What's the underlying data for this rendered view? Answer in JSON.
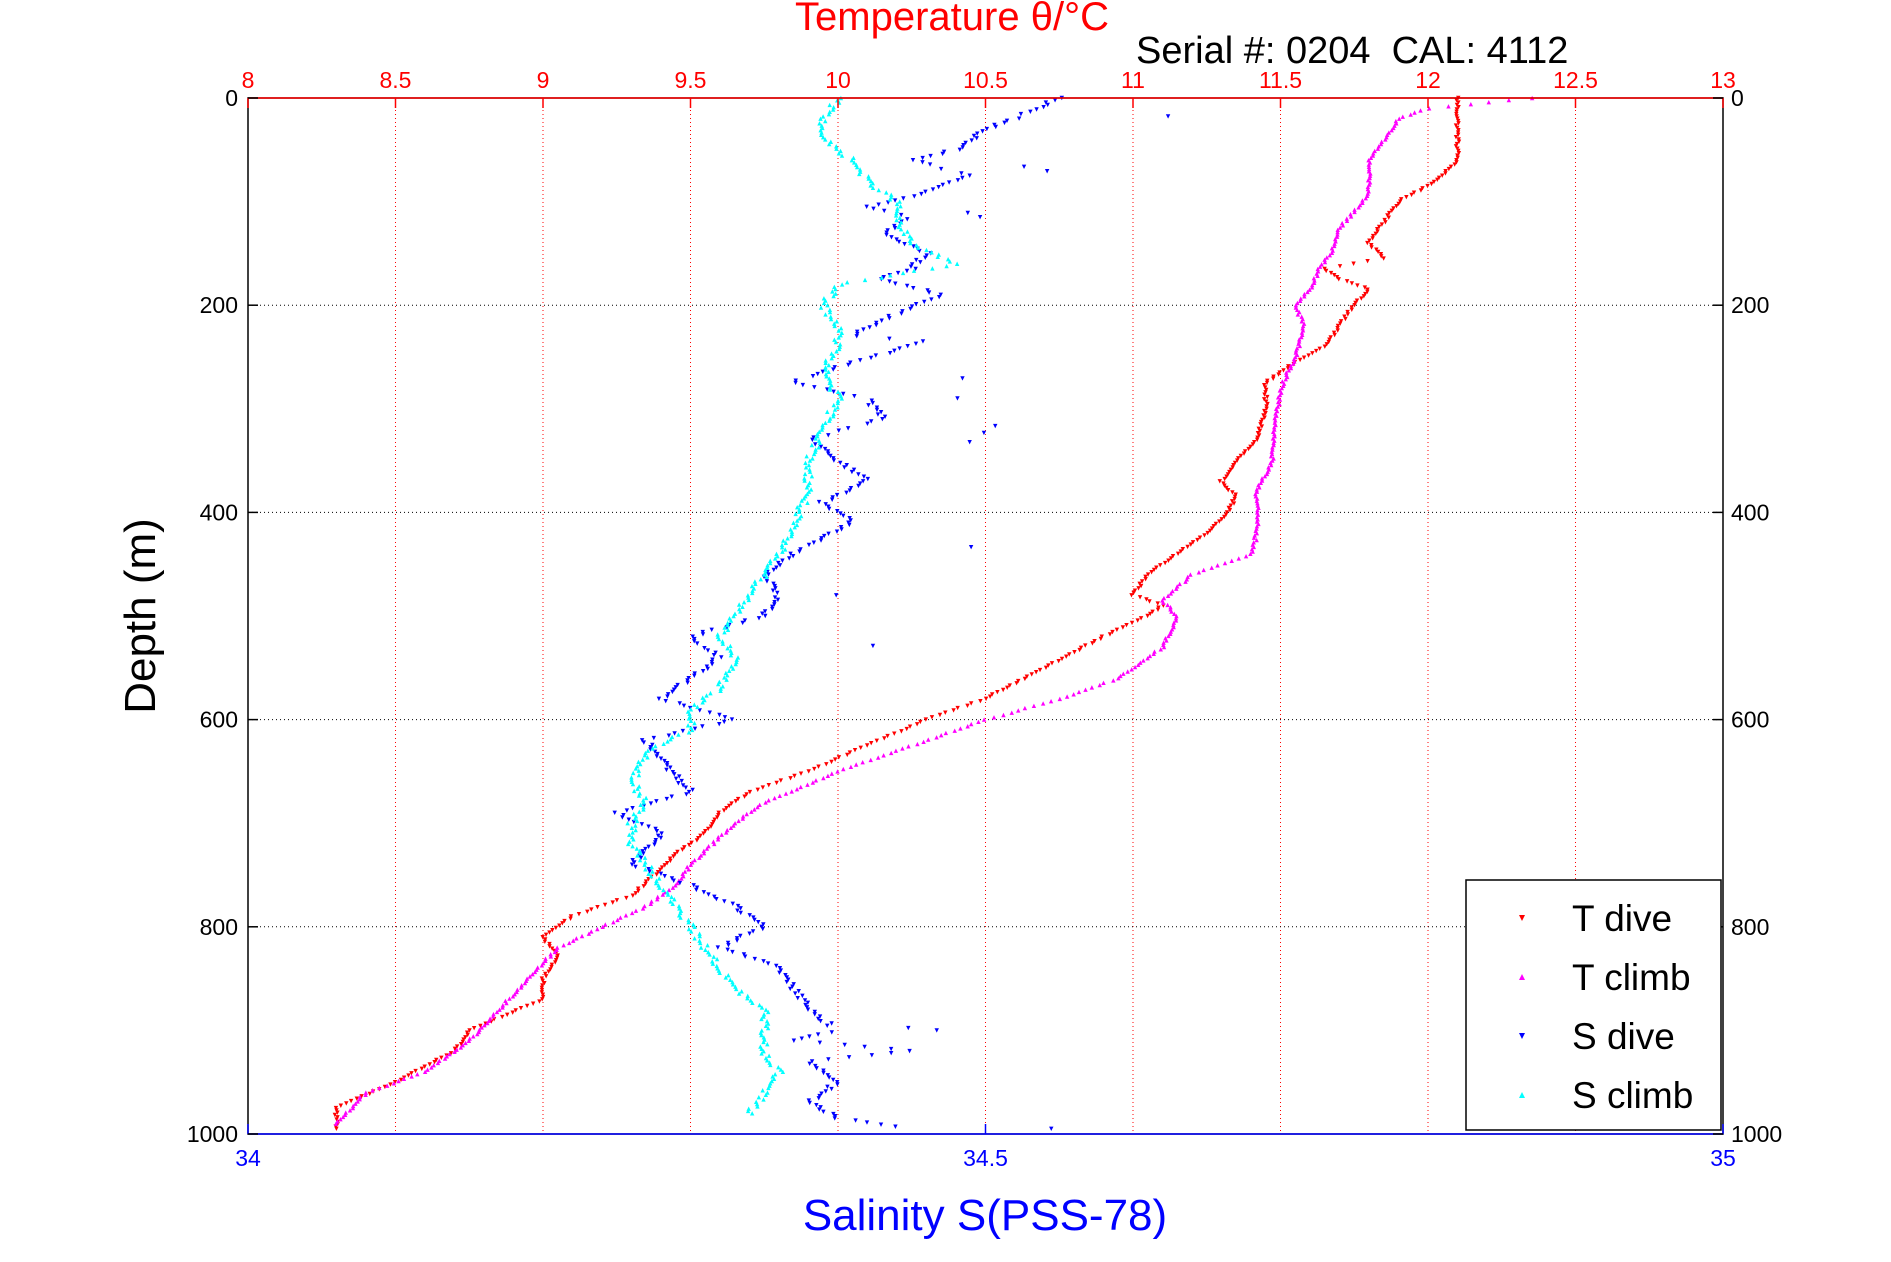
{
  "chart_data": {
    "type": "scatter",
    "title": "Temperature θ/°C",
    "subtitle": "Serial #: 0204  CAL: 4112",
    "xlabel_bottom": "Salinity S(PSS-78)",
    "ylabel": "Depth (m)",
    "x_top": {
      "label": "Temperature θ/°C",
      "range": [
        8,
        13
      ],
      "ticks": [
        "8",
        "8.5",
        "9",
        "9.5",
        "10",
        "10.5",
        "11",
        "11.5",
        "12",
        "12.5",
        "13"
      ],
      "color": "#ff0000"
    },
    "x_bottom": {
      "label": "Salinity S(PSS-78)",
      "range": [
        34,
        35
      ],
      "ticks": [
        "34",
        "34.5",
        "35"
      ],
      "color": "#0000ff"
    },
    "y": {
      "range": [
        0,
        1000
      ],
      "reversed": true,
      "ticks": [
        "0",
        "200",
        "400",
        "600",
        "800",
        "1000"
      ]
    },
    "grid": true,
    "legend": {
      "placement": "bottom-right"
    },
    "series": [
      {
        "name": "T dive",
        "axis": "top",
        "color": "#ff0000",
        "marker": "triangle-down",
        "points": [
          [
            12.1,
            0
          ],
          [
            12.1,
            20
          ],
          [
            12.1,
            60
          ],
          [
            12.05,
            75
          ],
          [
            12.0,
            85
          ],
          [
            11.9,
            100
          ],
          [
            11.85,
            120
          ],
          [
            11.8,
            140
          ],
          [
            11.85,
            155
          ],
          [
            11.75,
            160
          ],
          [
            11.65,
            165
          ],
          [
            11.7,
            175
          ],
          [
            11.8,
            185
          ],
          [
            11.75,
            200
          ],
          [
            11.7,
            220
          ],
          [
            11.65,
            240
          ],
          [
            11.55,
            255
          ],
          [
            11.5,
            265
          ],
          [
            11.45,
            275
          ],
          [
            11.45,
            300
          ],
          [
            11.42,
            330
          ],
          [
            11.35,
            350
          ],
          [
            11.3,
            370
          ],
          [
            11.35,
            385
          ],
          [
            11.32,
            400
          ],
          [
            11.25,
            420
          ],
          [
            11.15,
            440
          ],
          [
            11.05,
            460
          ],
          [
            11.0,
            480
          ],
          [
            11.1,
            490
          ],
          [
            11.05,
            500
          ],
          [
            10.9,
            520
          ],
          [
            10.7,
            550
          ],
          [
            10.5,
            580
          ],
          [
            10.3,
            600
          ],
          [
            10.1,
            625
          ],
          [
            9.9,
            650
          ],
          [
            9.7,
            670
          ],
          [
            9.6,
            690
          ],
          [
            9.55,
            710
          ],
          [
            9.45,
            730
          ],
          [
            9.4,
            745
          ],
          [
            9.3,
            770
          ],
          [
            9.1,
            790
          ],
          [
            9.0,
            810
          ],
          [
            9.05,
            830
          ],
          [
            9.0,
            850
          ],
          [
            9.0,
            870
          ],
          [
            8.75,
            900
          ],
          [
            8.7,
            920
          ],
          [
            8.5,
            950
          ],
          [
            8.3,
            975
          ],
          [
            8.3,
            995
          ]
        ]
      },
      {
        "name": "T climb",
        "axis": "top",
        "color": "#ff00ff",
        "marker": "triangle-up",
        "points": [
          [
            12.35,
            0
          ],
          [
            12.0,
            10
          ],
          [
            11.9,
            20
          ],
          [
            11.85,
            40
          ],
          [
            11.8,
            60
          ],
          [
            11.8,
            90
          ],
          [
            11.75,
            110
          ],
          [
            11.7,
            125
          ],
          [
            11.68,
            145
          ],
          [
            11.63,
            165
          ],
          [
            11.6,
            185
          ],
          [
            11.55,
            200
          ],
          [
            11.58,
            220
          ],
          [
            11.55,
            250
          ],
          [
            11.5,
            280
          ],
          [
            11.48,
            320
          ],
          [
            11.47,
            350
          ],
          [
            11.42,
            380
          ],
          [
            11.42,
            420
          ],
          [
            11.4,
            440
          ],
          [
            11.2,
            460
          ],
          [
            11.1,
            485
          ],
          [
            11.15,
            500
          ],
          [
            11.1,
            530
          ],
          [
            10.95,
            560
          ],
          [
            10.75,
            580
          ],
          [
            10.5,
            600
          ],
          [
            10.2,
            630
          ],
          [
            10.0,
            650
          ],
          [
            9.75,
            680
          ],
          [
            9.65,
            700
          ],
          [
            9.5,
            740
          ],
          [
            9.45,
            760
          ],
          [
            9.35,
            780
          ],
          [
            9.2,
            800
          ],
          [
            9.05,
            820
          ],
          [
            8.95,
            850
          ],
          [
            8.85,
            880
          ],
          [
            8.75,
            910
          ],
          [
            8.6,
            940
          ],
          [
            8.4,
            960
          ],
          [
            8.3,
            990
          ]
        ]
      },
      {
        "name": "S dive",
        "axis": "bottom",
        "color": "#0000ff",
        "marker": "triangle-down",
        "points": [
          [
            34.55,
            0
          ],
          [
            34.52,
            20
          ],
          [
            34.5,
            30
          ],
          [
            34.48,
            50
          ],
          [
            34.45,
            60
          ],
          [
            34.49,
            75
          ],
          [
            34.45,
            95
          ],
          [
            34.42,
            105
          ],
          [
            34.45,
            115
          ],
          [
            34.43,
            130
          ],
          [
            34.46,
            150
          ],
          [
            34.45,
            165
          ],
          [
            34.43,
            175
          ],
          [
            34.47,
            190
          ],
          [
            34.43,
            215
          ],
          [
            34.41,
            230
          ],
          [
            34.46,
            235
          ],
          [
            34.4,
            260
          ],
          [
            34.37,
            275
          ],
          [
            34.42,
            290
          ],
          [
            34.43,
            310
          ],
          [
            34.38,
            330
          ],
          [
            34.4,
            350
          ],
          [
            34.42,
            370
          ],
          [
            34.39,
            390
          ],
          [
            34.41,
            410
          ],
          [
            34.37,
            440
          ],
          [
            34.35,
            460
          ],
          [
            34.36,
            480
          ],
          [
            34.35,
            500
          ],
          [
            34.3,
            520
          ],
          [
            34.32,
            540
          ],
          [
            34.3,
            560
          ],
          [
            34.28,
            580
          ],
          [
            34.33,
            600
          ],
          [
            34.27,
            620
          ],
          [
            34.28,
            640
          ],
          [
            34.3,
            670
          ],
          [
            34.25,
            690
          ],
          [
            34.28,
            710
          ],
          [
            34.26,
            740
          ],
          [
            34.3,
            760
          ],
          [
            34.33,
            780
          ],
          [
            34.35,
            800
          ],
          [
            34.32,
            820
          ],
          [
            34.36,
            840
          ],
          [
            34.37,
            860
          ],
          [
            34.38,
            880
          ],
          [
            34.4,
            900
          ],
          [
            34.37,
            910
          ],
          [
            34.45,
            920
          ],
          [
            34.38,
            930
          ],
          [
            34.4,
            950
          ],
          [
            34.38,
            970
          ],
          [
            34.4,
            985
          ],
          [
            34.45,
            995
          ]
        ]
      },
      {
        "name": "S climb",
        "axis": "bottom",
        "color": "#00ffff",
        "marker": "triangle-up",
        "points": [
          [
            34.4,
            0
          ],
          [
            34.39,
            20
          ],
          [
            34.39,
            40
          ],
          [
            34.41,
            60
          ],
          [
            34.42,
            80
          ],
          [
            34.44,
            100
          ],
          [
            34.44,
            120
          ],
          [
            34.45,
            140
          ],
          [
            34.48,
            160
          ],
          [
            34.4,
            180
          ],
          [
            34.39,
            200
          ],
          [
            34.4,
            220
          ],
          [
            34.4,
            240
          ],
          [
            34.39,
            260
          ],
          [
            34.4,
            290
          ],
          [
            34.39,
            320
          ],
          [
            34.38,
            350
          ],
          [
            34.38,
            380
          ],
          [
            34.37,
            410
          ],
          [
            34.36,
            440
          ],
          [
            34.35,
            460
          ],
          [
            34.34,
            480
          ],
          [
            34.33,
            500
          ],
          [
            34.32,
            520
          ],
          [
            34.33,
            540
          ],
          [
            34.32,
            570
          ],
          [
            34.3,
            590
          ],
          [
            34.3,
            610
          ],
          [
            34.27,
            630
          ],
          [
            34.26,
            660
          ],
          [
            34.27,
            680
          ],
          [
            34.26,
            700
          ],
          [
            34.26,
            720
          ],
          [
            34.27,
            740
          ],
          [
            34.28,
            760
          ],
          [
            34.29,
            780
          ],
          [
            34.3,
            800
          ],
          [
            34.31,
            820
          ],
          [
            34.32,
            840
          ],
          [
            34.33,
            860
          ],
          [
            34.35,
            880
          ],
          [
            34.35,
            900
          ],
          [
            34.35,
            920
          ],
          [
            34.36,
            940
          ],
          [
            34.35,
            960
          ],
          [
            34.34,
            980
          ]
        ]
      }
    ]
  }
}
